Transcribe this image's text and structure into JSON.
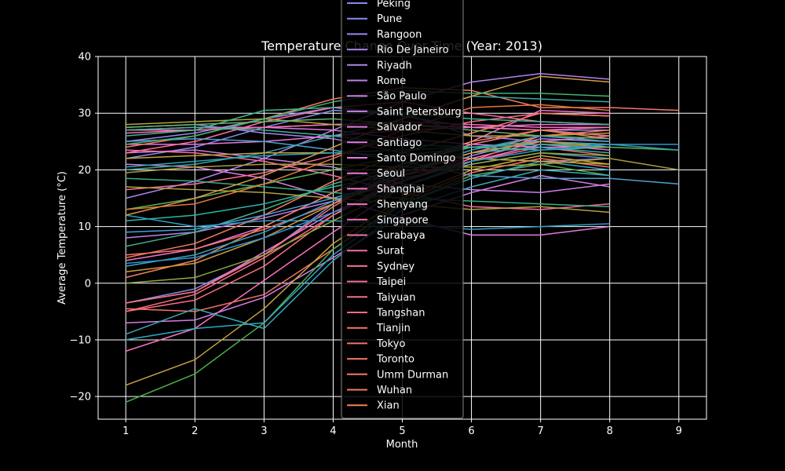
{
  "chart_data": {
    "type": "line",
    "title": "Temperature Change Over Time (Year: 2013)",
    "xlabel": "Month",
    "ylabel": "Average Temperature (°C)",
    "xlim": [
      0.6,
      9.4
    ],
    "ylim": [
      -24,
      40
    ],
    "xticks": [
      1,
      2,
      3,
      4,
      5,
      6,
      7,
      8,
      9
    ],
    "yticks": [
      -20,
      -10,
      0,
      10,
      20,
      30,
      40
    ],
    "grid": true,
    "legend_position": "top-center",
    "colors": {
      "background": "#000000",
      "grid": "#ffffff",
      "axes": "#ffffff",
      "text": "#ffffff"
    },
    "series": [
      {
        "name": "Peking",
        "color": "#7f8cf0",
        "x": [
          1,
          2,
          3,
          4,
          5,
          6,
          7,
          8
        ],
        "y": [
          -3.5,
          -1,
          5,
          14,
          21,
          24.5,
          27,
          26
        ]
      },
      {
        "name": "Pune",
        "color": "#8c8cf0",
        "x": [
          1,
          2,
          3,
          4,
          5,
          6,
          7,
          8
        ],
        "y": [
          22,
          24,
          27.5,
          30.5,
          30,
          26,
          25,
          24.5
        ]
      },
      {
        "name": "Rangoon",
        "color": "#9a88ee",
        "x": [
          1,
          2,
          3,
          4,
          5,
          6,
          7,
          8
        ],
        "y": [
          25,
          26.5,
          29,
          31,
          29.5,
          27.5,
          27,
          27
        ]
      },
      {
        "name": "Rio De Janeiro",
        "color": "#a685ec",
        "x": [
          1,
          2,
          3,
          4,
          5,
          6,
          7,
          8
        ],
        "y": [
          27.5,
          28,
          26.5,
          25.5,
          23,
          22,
          21.5,
          22
        ]
      },
      {
        "name": "Riyadh",
        "color": "#b283ea",
        "x": [
          1,
          2,
          3,
          4,
          5,
          6,
          7,
          8
        ],
        "y": [
          15,
          18,
          22,
          27,
          32,
          35.5,
          37,
          36
        ]
      },
      {
        "name": "Rome",
        "color": "#be81e8",
        "x": [
          1,
          2,
          3,
          4,
          5,
          6,
          7,
          8
        ],
        "y": [
          8,
          9,
          11.5,
          14.5,
          18,
          22.5,
          25.5,
          25
        ]
      },
      {
        "name": "São Paulo",
        "color": "#c97fe6",
        "x": [
          1,
          2,
          3,
          4,
          5,
          6,
          7,
          8
        ],
        "y": [
          23,
          23.5,
          22,
          20.5,
          17.5,
          16.5,
          16,
          17.5
        ]
      },
      {
        "name": "Saint Petersburg",
        "color": "#d37de4",
        "x": [
          1,
          2,
          3,
          4,
          5,
          6,
          7,
          8
        ],
        "y": [
          -7,
          -6.5,
          -2.5,
          4.5,
          12,
          16,
          19,
          17
        ]
      },
      {
        "name": "Salvador",
        "color": "#dc7be2",
        "x": [
          1,
          2,
          3,
          4,
          5,
          6,
          7,
          8
        ],
        "y": [
          27,
          27.5,
          27.5,
          27,
          25.5,
          24.5,
          24,
          24
        ]
      },
      {
        "name": "Santiago",
        "color": "#e479e0",
        "x": [
          1,
          2,
          3,
          4,
          5,
          6,
          7,
          8
        ],
        "y": [
          21,
          20.5,
          18.5,
          15,
          11.5,
          8.5,
          8.5,
          10
        ]
      },
      {
        "name": "Santo Domingo",
        "color": "#eb77de",
        "x": [
          1,
          2,
          3,
          4,
          5,
          6,
          7,
          8
        ],
        "y": [
          24.5,
          24.5,
          25,
          26,
          27,
          27.5,
          28,
          28
        ]
      },
      {
        "name": "Seoul",
        "color": "#f075d6",
        "x": [
          1,
          2,
          3,
          4,
          5,
          6,
          7,
          8
        ],
        "y": [
          -3.5,
          -1.5,
          5.5,
          12.5,
          18,
          22,
          25,
          26
        ]
      },
      {
        "name": "Shanghai",
        "color": "#f373cc",
        "x": [
          1,
          2,
          3,
          4,
          5,
          6,
          7,
          8
        ],
        "y": [
          4,
          6,
          10,
          16,
          21,
          25,
          30.5,
          30
        ]
      },
      {
        "name": "Shenyang",
        "color": "#f571c2",
        "x": [
          1,
          2,
          3,
          4,
          5,
          6,
          7,
          8
        ],
        "y": [
          -12,
          -8,
          0.5,
          9,
          17,
          21.5,
          24.5,
          23.5
        ]
      },
      {
        "name": "Singapore",
        "color": "#f670b8",
        "x": [
          1,
          2,
          3,
          4,
          5,
          6,
          7,
          8
        ],
        "y": [
          26.5,
          27,
          27.5,
          28,
          28.5,
          28,
          27.5,
          27.5
        ]
      },
      {
        "name": "Surabaya",
        "color": "#f76fae",
        "x": [
          1,
          2,
          3,
          4,
          5,
          6,
          7,
          8
        ],
        "y": [
          27,
          27,
          27.5,
          28,
          28,
          27.5,
          27,
          27.5
        ]
      },
      {
        "name": "Surat",
        "color": "#f76ea4",
        "x": [
          1,
          2,
          3,
          4,
          5,
          6,
          7,
          8
        ],
        "y": [
          23,
          25,
          28.5,
          31,
          32,
          30,
          28.5,
          28
        ]
      },
      {
        "name": "Sydney",
        "color": "#f76e9a",
        "x": [
          1,
          2,
          3,
          4,
          5,
          6,
          7,
          8
        ],
        "y": [
          23.5,
          23,
          21.5,
          19,
          16,
          13.5,
          13,
          14
        ]
      },
      {
        "name": "Taipei",
        "color": "#f76e90",
        "x": [
          1,
          2,
          3,
          4,
          5,
          6,
          7,
          8
        ],
        "y": [
          16.5,
          17.5,
          19.5,
          22.5,
          26,
          28.5,
          30,
          29.5
        ]
      },
      {
        "name": "Taiyuan",
        "color": "#f76e86",
        "x": [
          1,
          2,
          3,
          4,
          5,
          6,
          7,
          8
        ],
        "y": [
          -5,
          -2,
          4.5,
          12,
          18,
          21.5,
          24,
          22.5
        ]
      },
      {
        "name": "Tangshan",
        "color": "#f76f7d",
        "x": [
          1,
          2,
          3,
          4,
          5,
          6,
          7,
          8
        ],
        "y": [
          -5,
          -3,
          3,
          12,
          19,
          23,
          26,
          25
        ]
      },
      {
        "name": "Tianjin",
        "color": "#f77074",
        "x": [
          1,
          2,
          3,
          4,
          5,
          6,
          7,
          8
        ],
        "y": [
          -3.5,
          -1.5,
          5,
          13.5,
          20.5,
          24.5,
          27,
          26
        ]
      },
      {
        "name": "Tokyo",
        "color": "#f7726c",
        "x": [
          1,
          2,
          3,
          4,
          5,
          6,
          7,
          8
        ],
        "y": [
          5,
          6,
          9.5,
          14,
          19,
          21.5,
          26,
          27
        ]
      },
      {
        "name": "Toronto",
        "color": "#f77466",
        "x": [
          1,
          2,
          3,
          4,
          5,
          6,
          7,
          8
        ],
        "y": [
          -4.5,
          -5,
          -2,
          6,
          14.5,
          19.5,
          22,
          20.5
        ]
      },
      {
        "name": "Umm Durman",
        "color": "#f67862",
        "x": [
          1,
          2,
          3,
          4,
          5,
          6,
          7,
          8,
          9
        ],
        "y": [
          24,
          26,
          29,
          32.5,
          34.5,
          34,
          31,
          31,
          30.5
        ]
      },
      {
        "name": "Wuhan",
        "color": "#f57c5e",
        "x": [
          1,
          2,
          3,
          4,
          5,
          6,
          7,
          8
        ],
        "y": [
          4.5,
          7,
          12,
          18,
          23,
          26.5,
          30,
          29.5
        ]
      },
      {
        "name": "Xian",
        "color": "#f4805a",
        "x": [
          1,
          2,
          3,
          4,
          5,
          6,
          7,
          8
        ],
        "y": [
          1,
          4,
          10,
          16,
          21,
          25,
          27,
          25.5
        ]
      },
      {
        "name": "",
        "color": "#4daf4a",
        "x": [
          1,
          2,
          3,
          4,
          5,
          6,
          7,
          8
        ],
        "y": [
          -21,
          -16,
          -7,
          6,
          14,
          19,
          21,
          19
        ]
      },
      {
        "name": "",
        "color": "#c9a23a",
        "x": [
          1,
          2,
          3,
          4,
          5,
          6,
          7,
          8
        ],
        "y": [
          -18,
          -13.5,
          -4.5,
          7,
          15,
          20,
          22.5,
          21
        ]
      },
      {
        "name": "",
        "color": "#2fa8c8",
        "x": [
          1,
          2,
          3,
          4,
          5,
          6,
          7,
          8
        ],
        "y": [
          -10,
          -8,
          -7,
          5,
          14,
          18.5,
          21.5,
          20
        ]
      },
      {
        "name": "",
        "color": "#3aa7b5",
        "x": [
          1,
          2,
          3,
          4,
          5,
          6,
          7,
          8
        ],
        "y": [
          -9,
          -4.5,
          -8,
          4,
          13,
          17,
          20,
          19
        ]
      },
      {
        "name": "",
        "color": "#49b08e",
        "x": [
          1,
          2,
          3,
          4,
          5,
          6,
          7,
          8
        ],
        "y": [
          6.5,
          9,
          13,
          17.5,
          21,
          24,
          25,
          24.5
        ]
      },
      {
        "name": "",
        "color": "#43a0d6",
        "x": [
          1,
          2,
          3,
          4,
          5,
          6,
          7,
          8
        ],
        "y": [
          9,
          9.5,
          12,
          15,
          18.5,
          21,
          23,
          22
        ]
      },
      {
        "name": "",
        "color": "#2fb4a6",
        "x": [
          1,
          2,
          3,
          4,
          5,
          6,
          7,
          8
        ],
        "y": [
          11,
          12,
          14,
          17,
          19.5,
          23,
          24,
          23
        ]
      },
      {
        "name": "",
        "color": "#58b35b",
        "x": [
          1,
          2,
          3,
          4,
          5,
          6,
          7,
          8,
          9
        ],
        "y": [
          13,
          15,
          17.5,
          20,
          22.5,
          24,
          24.5,
          24,
          23.5
        ]
      },
      {
        "name": "",
        "color": "#39a8a0",
        "x": [
          1,
          2,
          3,
          4,
          5,
          6,
          7,
          8
        ],
        "y": [
          20,
          21,
          23,
          26,
          29,
          33,
          32.5,
          32
        ]
      },
      {
        "name": "",
        "color": "#b5a33c",
        "x": [
          1,
          2,
          3,
          4,
          5,
          6,
          7,
          8
        ],
        "y": [
          28,
          28.5,
          29,
          28,
          27,
          26,
          26,
          26.5
        ]
      },
      {
        "name": "",
        "color": "#62b46a",
        "x": [
          1,
          2,
          3,
          4,
          5,
          6,
          7,
          8
        ],
        "y": [
          27.5,
          28,
          28.5,
          29,
          28,
          27,
          26,
          25.5
        ]
      },
      {
        "name": "",
        "color": "#3cb58f",
        "x": [
          1,
          2,
          3,
          4,
          5,
          6,
          7,
          8
        ],
        "y": [
          26,
          27,
          30.5,
          31,
          30,
          29,
          28.5,
          28
        ]
      },
      {
        "name": "",
        "color": "#c2a441",
        "x": [
          1,
          2,
          3,
          4,
          5,
          6,
          7,
          8
        ],
        "y": [
          22,
          22.5,
          23,
          23,
          22.5,
          22,
          21.5,
          21
        ]
      },
      {
        "name": "",
        "color": "#a99a3a",
        "x": [
          1,
          2,
          3,
          4,
          5,
          6,
          7,
          8,
          9
        ],
        "y": [
          19.5,
          20.5,
          21,
          21,
          20.5,
          20.5,
          21,
          22,
          20
        ]
      },
      {
        "name": "",
        "color": "#2e9bc4",
        "x": [
          1,
          2,
          3,
          4,
          5,
          6,
          7,
          8
        ],
        "y": [
          12,
          10,
          11,
          11,
          10.5,
          9.5,
          10,
          10.5
        ]
      },
      {
        "name": "",
        "color": "#b3a040",
        "x": [
          1,
          2,
          3,
          4,
          5,
          6,
          7,
          8
        ],
        "y": [
          17,
          16.5,
          16,
          15,
          14,
          13,
          13.5,
          12.5
        ]
      },
      {
        "name": "",
        "color": "#3aaa86",
        "x": [
          1,
          2,
          3,
          4,
          5,
          6,
          7,
          8
        ],
        "y": [
          18.5,
          18,
          17,
          16,
          15,
          14.5,
          14,
          13.5
        ]
      },
      {
        "name": "",
        "color": "#4f9fd0",
        "x": [
          1,
          2,
          3,
          4,
          5,
          6,
          7,
          8,
          9
        ],
        "y": [
          25,
          25.5,
          25,
          23.5,
          21.5,
          19,
          18.5,
          18.5,
          17.5
        ]
      },
      {
        "name": "",
        "color": "#2aa4b0",
        "x": [
          1,
          2,
          3,
          4,
          5,
          6,
          7,
          8,
          9
        ],
        "y": [
          20.5,
          21.5,
          22.5,
          23,
          23.5,
          24,
          24.5,
          24.5,
          23.5
        ]
      },
      {
        "name": "",
        "color": "#d39a46",
        "x": [
          1,
          2,
          3,
          4,
          5,
          6,
          7,
          8
        ],
        "y": [
          12,
          15,
          19,
          24,
          29,
          33,
          36.5,
          35.5
        ]
      },
      {
        "name": "",
        "color": "#45b06e",
        "x": [
          1,
          2,
          3,
          4,
          5,
          6,
          7,
          8
        ],
        "y": [
          24.5,
          26,
          29,
          32,
          34,
          33.5,
          33.5,
          33
        ]
      },
      {
        "name": "",
        "color": "#e07a3a",
        "x": [
          1,
          2,
          3,
          4,
          5,
          6,
          7,
          8
        ],
        "y": [
          13,
          14,
          17.5,
          22,
          27,
          31,
          31.5,
          30.5
        ]
      },
      {
        "name": "",
        "color": "#cf9a3d",
        "x": [
          1,
          2,
          3,
          4,
          5,
          6,
          7,
          8
        ],
        "y": [
          2,
          3.5,
          8,
          14,
          19.5,
          23,
          25,
          24
        ]
      },
      {
        "name": "",
        "color": "#8fa83e",
        "x": [
          1,
          2,
          3,
          4,
          5,
          6,
          7,
          8
        ],
        "y": [
          0,
          1,
          5,
          11,
          17,
          21,
          23,
          22.5
        ]
      },
      {
        "name": "",
        "color": "#36a1c0",
        "x": [
          1,
          2,
          3,
          4,
          5,
          6,
          7,
          8
        ],
        "y": [
          3,
          5,
          9,
          14.5,
          19.5,
          23.5,
          26,
          25
        ]
      },
      {
        "name": "",
        "color": "#41b49a",
        "x": [
          1,
          2,
          3,
          4,
          5,
          6,
          7,
          8
        ],
        "y": [
          27,
          27.5,
          27,
          26,
          24.5,
          24,
          23.5,
          24
        ]
      },
      {
        "name": "",
        "color": "#2f93d0",
        "x": [
          1,
          2,
          3,
          4,
          5,
          6,
          7,
          8,
          9
        ],
        "y": [
          3.5,
          4.5,
          8,
          12.5,
          17,
          21.5,
          23.5,
          24.5,
          24.5
        ]
      }
    ]
  }
}
